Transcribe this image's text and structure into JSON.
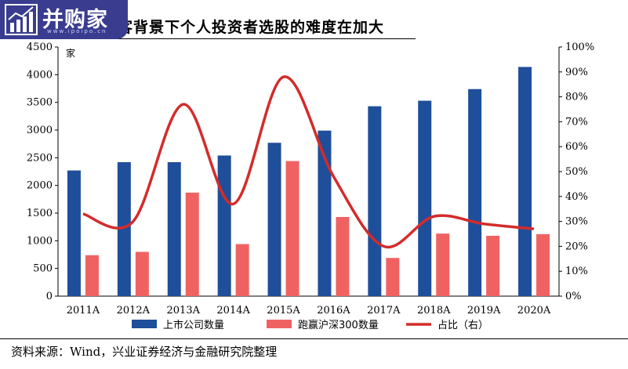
{
  "header": {
    "title": "客背景下个人投资者选股的难度在加大",
    "logo_text": "并购家",
    "logo_url": "www.ipoipo.cn",
    "logo_icon": "chart-growth-icon"
  },
  "footer": {
    "source": "资料来源：Wind，兴业证券经济与金融研究院整理"
  },
  "chart_data": {
    "type": "bar",
    "categories": [
      "2011A",
      "2012A",
      "2013A",
      "2014A",
      "2015A",
      "2016A",
      "2017A",
      "2018A",
      "2019A",
      "2020A"
    ],
    "left_axis": {
      "unit": "家",
      "ylim": [
        0,
        4500
      ],
      "ticks": [
        "0",
        "500",
        "1000",
        "1500",
        "2000",
        "2500",
        "3000",
        "3500",
        "4000",
        "4500"
      ]
    },
    "right_axis": {
      "ylim": [
        0,
        100
      ],
      "ticks": [
        "0%",
        "10%",
        "20%",
        "30%",
        "40%",
        "50%",
        "60%",
        "70%",
        "80%",
        "90%",
        "100%"
      ]
    },
    "series": [
      {
        "name": "上市公司数量",
        "type": "bar",
        "axis": "left",
        "color": "#1f4e9a",
        "values": [
          2270,
          2420,
          2420,
          2540,
          2770,
          2990,
          3430,
          3530,
          3740,
          4140
        ]
      },
      {
        "name": "跑赢沪深300数量",
        "type": "bar",
        "axis": "left",
        "color": "#f06262",
        "values": [
          740,
          800,
          1870,
          940,
          2440,
          1430,
          690,
          1130,
          1090,
          1120
        ]
      },
      {
        "name": "占比（右）",
        "type": "line",
        "axis": "right",
        "color": "#d42b2b",
        "values": [
          33,
          30,
          77,
          37,
          88,
          48,
          20,
          32,
          29,
          27
        ]
      }
    ],
    "grid": false,
    "legend_position": "bottom"
  }
}
